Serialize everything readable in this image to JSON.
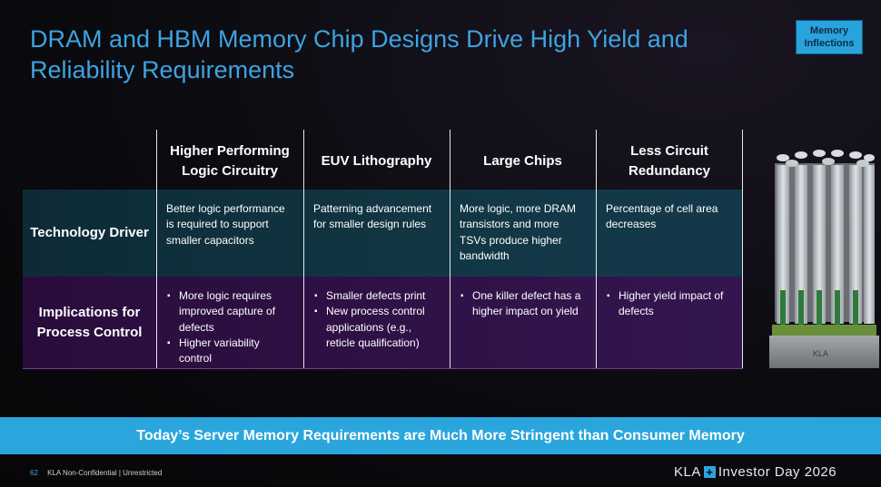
{
  "title": "DRAM and HBM Memory Chip Designs Drive High Yield and Reliability Requirements",
  "badge": "Memory Inflections",
  "table": {
    "headers": [
      "Higher Performing Logic Circuitry",
      "EUV Lithography",
      "Large Chips",
      "Less Circuit Redundancy"
    ],
    "rows": [
      {
        "label": "Technology Driver",
        "cells": [
          "Better logic performance is required to support smaller capacitors",
          "Patterning advancement for smaller design rules",
          "More logic, more DRAM transistors and more TSVs produce higher bandwidth",
          "Percentage of cell area decreases"
        ]
      },
      {
        "label": "Implications for Process Control",
        "cells": [
          [
            "More logic requires improved capture of defects",
            "Higher variability control"
          ],
          [
            "Smaller defects print",
            "New process control applications (e.g., reticle qualification)"
          ],
          [
            "One killer defect has a higher impact on yield"
          ],
          [
            "Higher yield impact of defects"
          ]
        ]
      }
    ]
  },
  "banner": "Today’s Server Memory Requirements are Much More Stringent than Consumer Memory",
  "footer": {
    "page": "62",
    "classification": "KLA Non-Confidential | Unrestricted",
    "brand_name": "KLA",
    "brand_tagline": "Investor Day 2026",
    "chip_marking": "KLA"
  },
  "colors": {
    "accent": "#2aa6dd",
    "title": "#3ea3e0",
    "tech_row": "#123744",
    "impl_row": "#2f1247"
  }
}
